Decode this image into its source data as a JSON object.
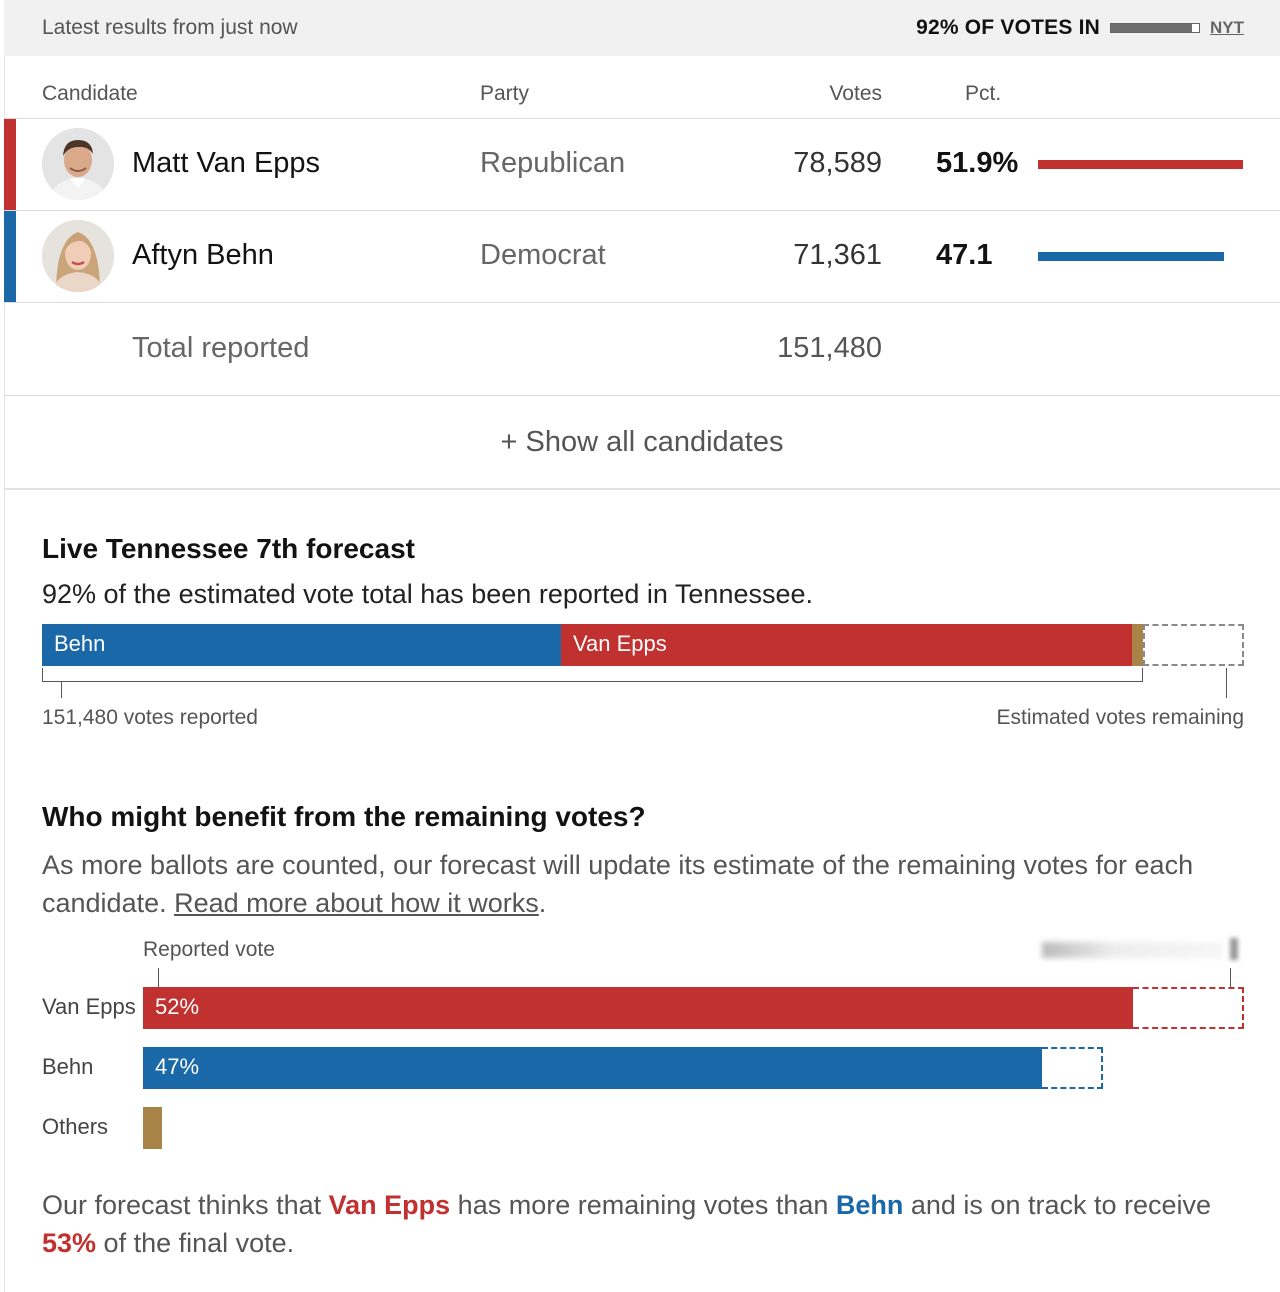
{
  "status": {
    "updated": "Latest results from just now",
    "votes_in": "92% OF VOTES IN",
    "votes_in_fraction": 0.92,
    "source": "NYT"
  },
  "table": {
    "headers": {
      "candidate": "Candidate",
      "party": "Party",
      "votes": "Votes",
      "pct": "Pct."
    },
    "rows": [
      {
        "name": "Matt Van Epps",
        "party": "Republican",
        "votes": "78,589",
        "pct": "51.9%",
        "pct_value": 51.9,
        "color": "#c0312f"
      },
      {
        "name": "Aftyn Behn",
        "party": "Democrat",
        "votes": "71,361",
        "pct": "47.1",
        "pct_value": 47.1,
        "color": "#1a68a8"
      }
    ],
    "total_label": "Total reported",
    "total_votes": "151,480",
    "show_all": "+ Show all candidates"
  },
  "forecast": {
    "title": "Live Tennessee 7th forecast",
    "subtitle": "92% of the estimated vote total has been reported in Tennessee.",
    "segments": [
      {
        "label": "Behn",
        "share": 0.432,
        "color": "#1a68a8"
      },
      {
        "label": "Van Epps",
        "share": 0.475,
        "color": "#c0312f"
      },
      {
        "label": "",
        "share": 0.009,
        "color": "#a88449"
      }
    ],
    "remaining_share": 0.084,
    "reported_label": "151,480 votes reported",
    "remaining_label": "Estimated votes remaining"
  },
  "benefit": {
    "title": "Who might benefit from the remaining votes?",
    "desc": "As more ballots are counted, our forecast will update its estimate of the remaining votes for each candidate. ",
    "link": "Read more about how it works",
    "desc_end": ".",
    "reported_label": "Reported vote",
    "bars": [
      {
        "name": "Van Epps",
        "label": "52%",
        "reported": 0.896,
        "remaining": 0.1,
        "color": "#c0312f"
      },
      {
        "name": "Behn",
        "label": "47%",
        "reported": 0.814,
        "remaining": 0.055,
        "color": "#1a68a8"
      },
      {
        "name": "Others",
        "label": "",
        "reported": 0.017,
        "remaining": 0,
        "color": "#a88449"
      }
    ]
  },
  "summary": {
    "p1": "Our forecast thinks that ",
    "rep": "Van Epps",
    "p2": " has more remaining votes than ",
    "dem": "Behn",
    "p3": " and is on track to receive ",
    "pct": "53%",
    "p4": " of the final vote."
  }
}
